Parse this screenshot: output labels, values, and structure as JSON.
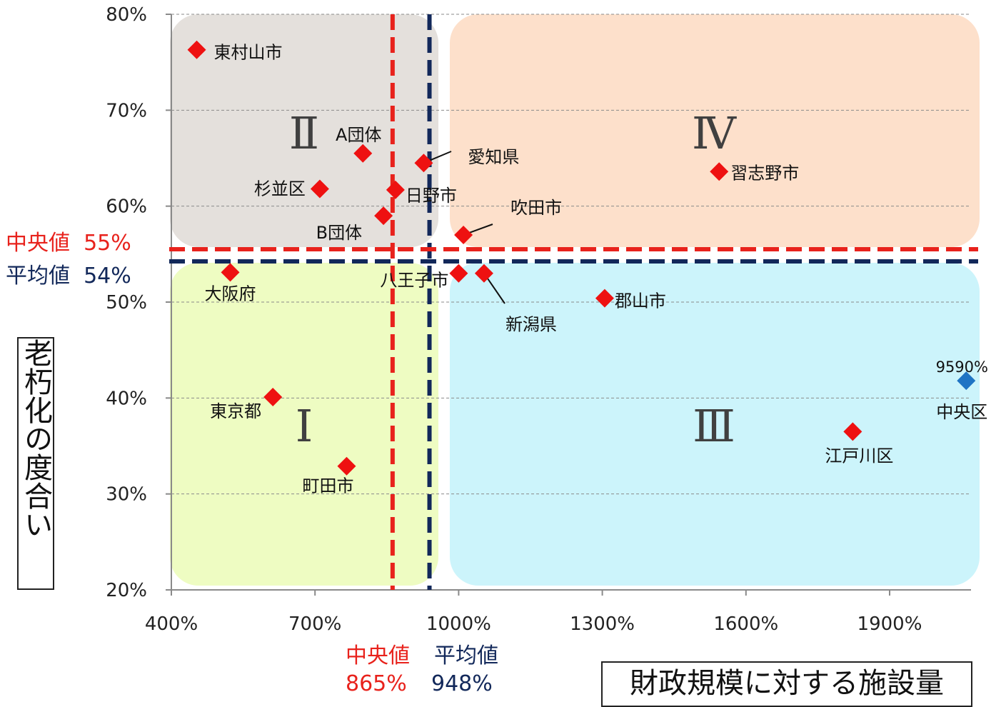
{
  "chart_data": {
    "type": "scatter",
    "title": "",
    "xlabel": "財政規模に対する施設量",
    "ylabel": "老朽化の度合い",
    "xlim": [
      400,
      2070
    ],
    "ylim": [
      20,
      80
    ],
    "x_ticks": [
      "400%",
      "700%",
      "1000%",
      "1300%",
      "1600%",
      "1900%"
    ],
    "x_tick_values": [
      400,
      700,
      1000,
      1300,
      1600,
      1900
    ],
    "y_ticks": [
      "80%",
      "70%",
      "60%",
      "50%",
      "40%",
      "30%",
      "20%"
    ],
    "y_tick_values": [
      80,
      70,
      60,
      50,
      40,
      30,
      20
    ],
    "grid": "horizontal dashed",
    "points": [
      {
        "label": "東村山市",
        "x": 453,
        "y": 76.3,
        "color": "#ee1111"
      },
      {
        "label": "A団体",
        "x": 800,
        "y": 65.5,
        "color": "#ee1111"
      },
      {
        "label": "愛知県",
        "x": 927,
        "y": 64.5,
        "color": "#ee1111"
      },
      {
        "label": "杉並区",
        "x": 710,
        "y": 61.8,
        "color": "#ee1111"
      },
      {
        "label": "日野市",
        "x": 868,
        "y": 61.7,
        "color": "#ee1111"
      },
      {
        "label": "B団体",
        "x": 843,
        "y": 59.0,
        "color": "#ee1111"
      },
      {
        "label": "吹田市",
        "x": 1010,
        "y": 57.0,
        "color": "#ee1111"
      },
      {
        "label": "大阪府",
        "x": 523,
        "y": 53.1,
        "color": "#ee1111"
      },
      {
        "label": "八王子市",
        "x": 1000,
        "y": 53.0,
        "color": "#ee1111"
      },
      {
        "label": "新潟県",
        "x": 1053,
        "y": 53.0,
        "color": "#ee1111"
      },
      {
        "label": "郡山市",
        "x": 1305,
        "y": 50.4,
        "color": "#ee1111"
      },
      {
        "label": "習志野市",
        "x": 1544,
        "y": 63.6,
        "color": "#ee1111"
      },
      {
        "label": "東京都",
        "x": 612,
        "y": 40.1,
        "color": "#ee1111"
      },
      {
        "label": "町田市",
        "x": 766,
        "y": 32.9,
        "color": "#ee1111"
      },
      {
        "label": "江戸川区",
        "x": 1823,
        "y": 36.5,
        "color": "#ee1111"
      },
      {
        "label": "中央区",
        "value_label": "9590%",
        "x": 2060,
        "y": 41.8,
        "color": "#1f74c4"
      }
    ],
    "quadrants": [
      {
        "label": "Ⅰ",
        "color": "#eefcc2"
      },
      {
        "label": "Ⅱ",
        "color": "#e4e0dc"
      },
      {
        "label": "Ⅲ",
        "color": "#ccf4fb"
      },
      {
        "label": "Ⅳ",
        "color": "#fde0cb"
      }
    ],
    "reference_lines": {
      "median": {
        "label": "中央値",
        "x": 865,
        "y": 55,
        "x_text": "865%",
        "y_text": "55%",
        "color": "#e8221c"
      },
      "mean": {
        "label": "平均値",
        "x": 948,
        "y": 54,
        "x_text": "948%",
        "y_text": "54%",
        "color": "#12285a"
      }
    }
  }
}
